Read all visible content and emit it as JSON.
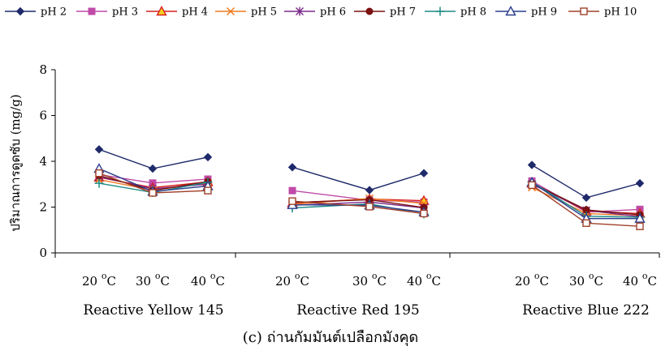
{
  "chart_data": {
    "type": "line",
    "caption": "(c) ถ่านกัมมันต์เปลือกมังคุด",
    "ylabel": "ปริมาณการดูดซับ (mg/g)",
    "ylim": [
      0,
      8
    ],
    "yticks": [
      0,
      2,
      4,
      6,
      8
    ],
    "groups": [
      {
        "name": "Reactive Yellow 145",
        "temps": [
          "20",
          "30",
          "40"
        ]
      },
      {
        "name": "Reactive Red 195",
        "temps": [
          "20",
          "30",
          "40"
        ]
      },
      {
        "name": "Reactive Blue 222",
        "temps": [
          "20",
          "30",
          "40"
        ]
      }
    ],
    "temp_unit": "C",
    "temp_degree": "o",
    "legend_position": "top",
    "series": [
      {
        "name": "pH 2",
        "color": "#1f2a6b",
        "marker": "diamond",
        "values": [
          [
            4.52,
            3.68,
            4.18
          ],
          [
            3.74,
            2.74,
            3.48
          ],
          [
            3.84,
            2.41,
            3.04
          ]
        ]
      },
      {
        "name": "pH 3",
        "color": "#c04aa8",
        "marker": "square",
        "values": [
          [
            3.42,
            3.05,
            3.22
          ],
          [
            2.72,
            2.3,
            2.22
          ],
          [
            3.14,
            1.78,
            1.9
          ]
        ]
      },
      {
        "name": "pH 4",
        "color": "#d62020",
        "marker": "triangle-filled",
        "values": [
          [
            3.3,
            2.85,
            3.1
          ],
          [
            2.18,
            2.35,
            2.28
          ],
          [
            3.04,
            1.82,
            1.72
          ]
        ]
      },
      {
        "name": "pH 5",
        "color": "#f07a20",
        "marker": "x",
        "values": [
          [
            3.2,
            2.74,
            3.04
          ],
          [
            2.12,
            2.38,
            2.16
          ],
          [
            2.86,
            1.72,
            1.62
          ]
        ]
      },
      {
        "name": "pH 6",
        "color": "#7a2a8a",
        "marker": "star",
        "values": [
          [
            3.32,
            2.8,
            3.0
          ],
          [
            2.08,
            2.22,
            1.96
          ],
          [
            3.0,
            1.86,
            1.58
          ]
        ]
      },
      {
        "name": "pH 7",
        "color": "#7a1010",
        "marker": "circle",
        "values": [
          [
            3.38,
            2.72,
            3.12
          ],
          [
            2.2,
            2.32,
            1.98
          ],
          [
            3.05,
            1.88,
            1.66
          ]
        ]
      },
      {
        "name": "pH 8",
        "color": "#1e8a86",
        "marker": "plus",
        "values": [
          [
            3.04,
            2.64,
            3.08
          ],
          [
            1.96,
            2.14,
            1.7
          ],
          [
            3.1,
            1.6,
            1.56
          ]
        ]
      },
      {
        "name": "pH 9",
        "color": "#2b3f8c",
        "marker": "triangle-open",
        "values": [
          [
            3.68,
            2.68,
            2.92
          ],
          [
            2.1,
            2.08,
            1.78
          ],
          [
            3.08,
            1.5,
            1.5
          ]
        ]
      },
      {
        "name": "pH 10",
        "color": "#a0402a",
        "marker": "square-open",
        "values": [
          [
            3.48,
            2.62,
            2.72
          ],
          [
            2.26,
            2.02,
            1.72
          ],
          [
            2.96,
            1.3,
            1.16
          ]
        ]
      }
    ]
  }
}
